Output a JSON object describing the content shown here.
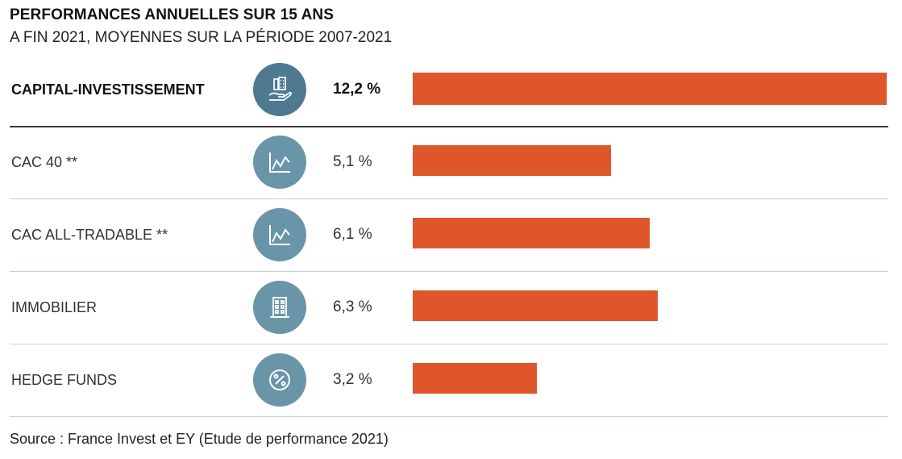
{
  "header": {
    "title": "PERFORMANCES ANNUELLES SUR 15 ANS",
    "subtitle": "A FIN 2021, MOYENNES SUR LA PÉRIODE 2007-2021"
  },
  "chart_data": {
    "type": "bar",
    "orientation": "horizontal",
    "categories": [
      "CAPITAL-INVESTISSEMENT",
      "CAC 40 **",
      "CAC ALL-TRADABLE **",
      "IMMOBILIER",
      "HEDGE FUNDS"
    ],
    "values": [
      12.2,
      5.1,
      6.1,
      6.3,
      3.2
    ],
    "value_labels": [
      "12,2 %",
      "5,1 %",
      "6,1 %",
      "6,3 %",
      "3,2 %"
    ],
    "icons": [
      "hand-buildings-icon",
      "line-chart-icon",
      "line-chart-icon",
      "building-icon",
      "percent-icon"
    ],
    "highlight_index": 0,
    "xlim": [
      0,
      12.2
    ],
    "bar_color": "#e0562b",
    "icon_color": "#6a95a8",
    "icon_highlight_color": "#4d7a90",
    "grid": false
  },
  "source": "Source : France Invest et EY (Etude de performance 2021)"
}
